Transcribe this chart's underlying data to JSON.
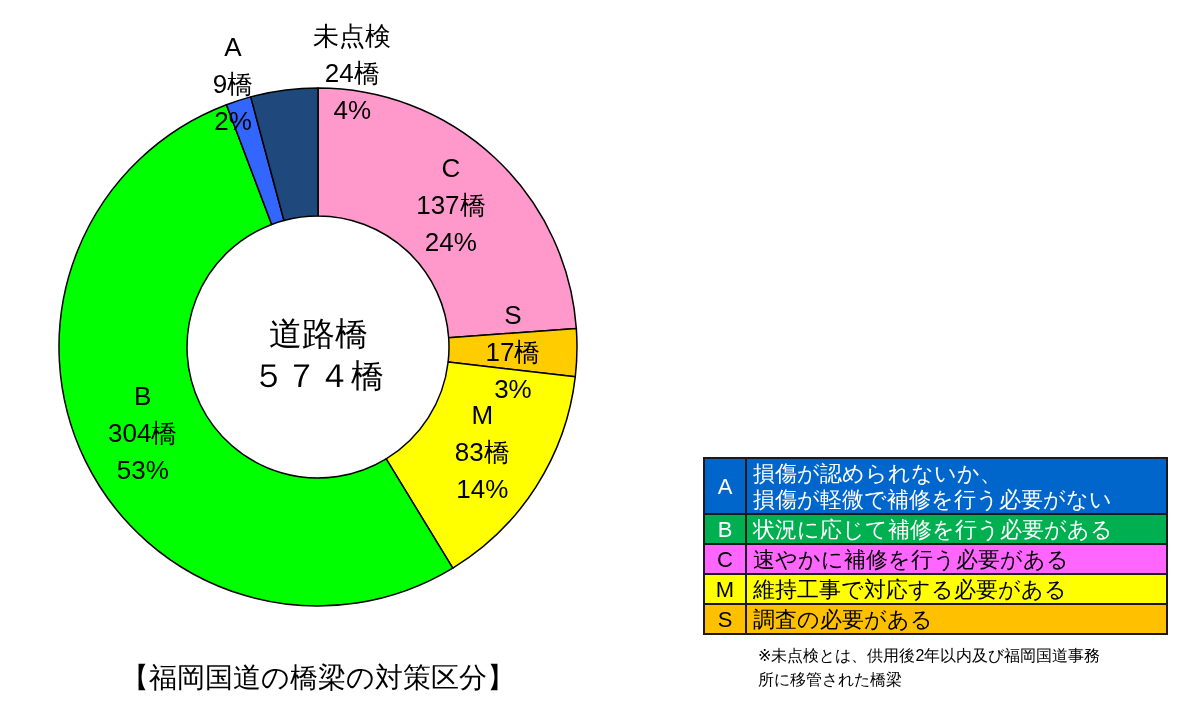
{
  "chart_data": [
    {
      "type": "donut",
      "title": "【福岡国道の橋梁の対策区分】",
      "categories": [
        "C",
        "S",
        "M",
        "B",
        "A",
        "未点検"
      ],
      "values": [
        137,
        17,
        83,
        304,
        9,
        24
      ],
      "colors": [
        "#ff99cc",
        "#ffcc00",
        "#ffff00",
        "#00ff00",
        "#3366ff",
        "#1f497d"
      ],
      "value_labels": [
        "137橋\n24%",
        "17橋\n3%",
        "83橋\n14%",
        "304橋\n53%",
        "9橋\n2%",
        "24橋\n4%"
      ],
      "annotations": [
        "道路橋",
        "５７４橋"
      ]
    },
    {
      "type": "other",
      "categories": [
        "A",
        "B",
        "C",
        "M",
        "S"
      ],
      "colors": [
        "#0066cc",
        "#00b050",
        "#ff66ff",
        "#ffff00",
        "#ffc000"
      ],
      "annotations": [
        "損傷が認められないか、損傷が軽微で補修を行う必要がない",
        "状況に応じて補修を行う必要がある",
        "速やかに補修を行う必要がある",
        "維持工事で対応する必要がある",
        "調査の必要がある",
        "※未点検とは、供用後2年以内及び福岡国道事務所に移管された橋梁"
      ]
    }
  ]
}
